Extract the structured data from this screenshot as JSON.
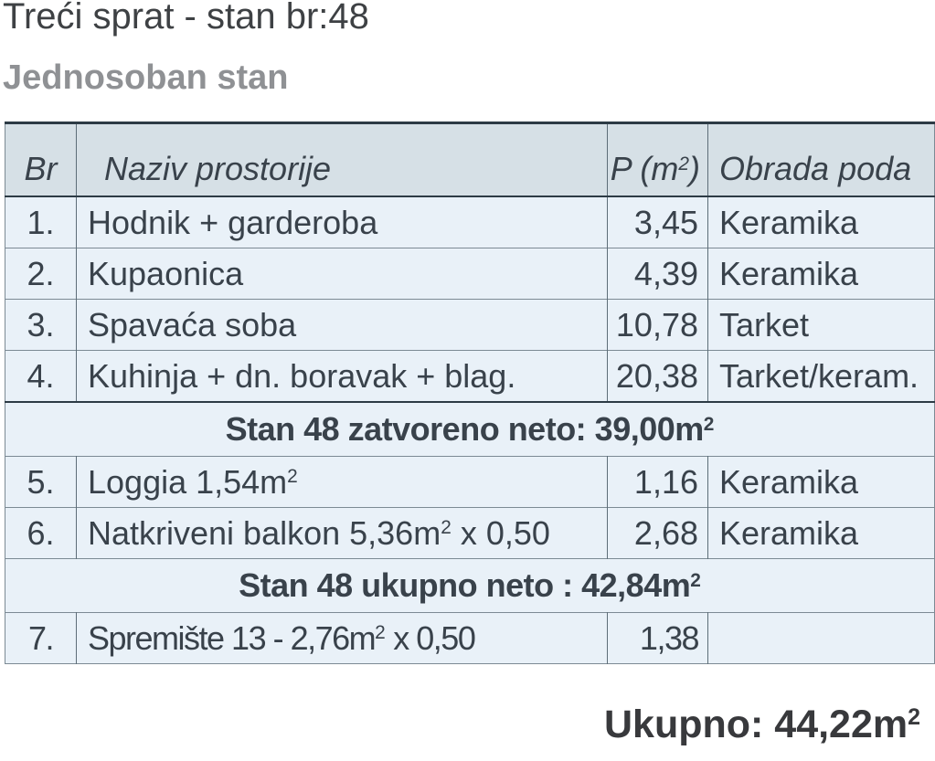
{
  "page": {
    "title": "Treći sprat - stan br:48",
    "subtitle": "Jednosoban stan",
    "total": {
      "label": "Ukupno: 44,22m",
      "sup": "2"
    }
  },
  "table": {
    "headers": {
      "br": "Br",
      "naziv": "Naziv prostorije",
      "p_pre": "P (m",
      "p_sup": "2",
      "p_post": ")",
      "obrada": "Obrada poda"
    },
    "rows": [
      {
        "br": "1.",
        "name_pre": "Hodnik + garderoba",
        "name_sup": "",
        "name_post": "",
        "p": "3,45",
        "obrada": "Keramika"
      },
      {
        "br": "2.",
        "name_pre": "Kupaonica",
        "name_sup": "",
        "name_post": "",
        "p": "4,39",
        "obrada": "Keramika"
      },
      {
        "br": "3.",
        "name_pre": "Spavaća soba",
        "name_sup": "",
        "name_post": "",
        "p": "10,78",
        "obrada": "Tarket"
      },
      {
        "br": "4.",
        "name_pre": "Kuhinja + dn. boravak + blag.",
        "name_sup": "",
        "name_post": "",
        "p": "20,38",
        "obrada": "Tarket/keram."
      },
      {
        "br": "5.",
        "name_pre": "Loggia 1,54m",
        "name_sup": "2",
        "name_post": "",
        "p": "1,16",
        "obrada": "Keramika"
      },
      {
        "br": "6.",
        "name_pre": "Natkriveni balkon 5,36m",
        "name_sup": "2",
        "name_post": " x 0,50",
        "p": "2,68",
        "obrada": "Keramika"
      },
      {
        "br": "7.",
        "name_pre": "Spremište 13 - 2,76m",
        "name_sup": "2",
        "name_post": " x 0,50",
        "p": "1,38",
        "obrada": ""
      }
    ],
    "summary_closed": {
      "label": "Stan 48 zatvoreno neto: 39,00m",
      "sup": "2"
    },
    "summary_total": {
      "label": "Stan 48 ukupno neto : 42,84m",
      "sup": "2"
    }
  },
  "colors": {
    "table_header_bg": "#d6e0e6",
    "table_row_bg": "#e9f1f8",
    "dark_border": "#2d3b45",
    "light_border": "#7c8a94"
  }
}
